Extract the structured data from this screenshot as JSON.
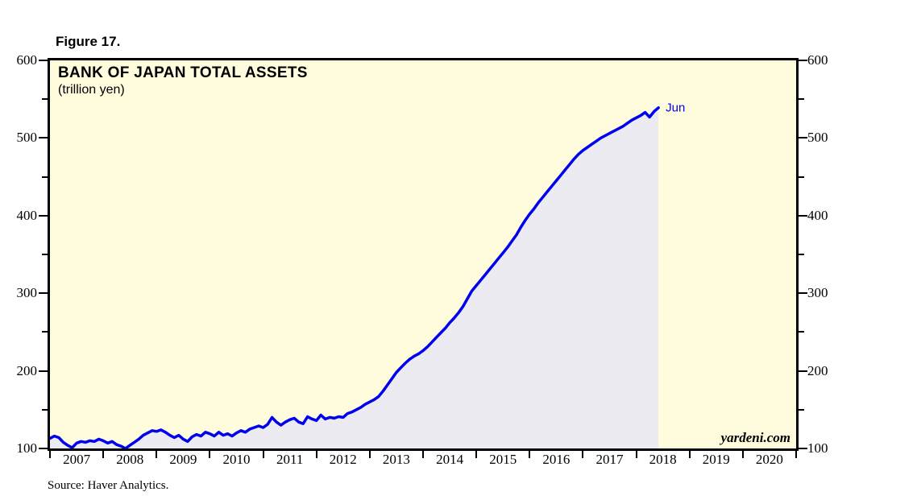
{
  "figure": {
    "label": "Figure 17."
  },
  "chart": {
    "title": "BANK OF JAPAN TOTAL ASSETS",
    "subtitle": "(trillion yen)",
    "branding": "yardeni.com",
    "last_point_label": "Jun"
  },
  "footer": {
    "source": "Source: Haver Analytics."
  },
  "colors": {
    "plot_background": "#FFFCDE",
    "area_fill": "#EBEBF1",
    "line": "#0000EE",
    "axis": "#000000",
    "page_background": "#FFFFFF"
  },
  "chart_data": {
    "type": "area",
    "title": "BANK OF JAPAN TOTAL ASSETS",
    "unit": "trillion yen",
    "start": {
      "year": 2007,
      "month": "Jan"
    },
    "end": {
      "year": 2018,
      "month": "Jun"
    },
    "x_axis_years": [
      2007,
      2008,
      2009,
      2010,
      2011,
      2012,
      2013,
      2014,
      2015,
      2016,
      2017,
      2018,
      2019,
      2020
    ],
    "ylim": [
      100,
      600
    ],
    "y_major_ticks": [
      100,
      200,
      300,
      400,
      500,
      600
    ],
    "y_minor_ticks": [
      150,
      250,
      350,
      450,
      550
    ],
    "grid": false,
    "legend": "none",
    "series": [
      {
        "name": "Bank of Japan total assets (trillion yen, monthly)",
        "monthly_values": [
          113,
          116,
          114,
          108,
          104,
          101,
          107,
          109,
          108,
          110,
          109,
          112,
          110,
          107,
          109,
          105,
          103,
          100,
          104,
          108,
          112,
          117,
          120,
          123,
          122,
          124,
          121,
          117,
          114,
          117,
          112,
          109,
          115,
          118,
          116,
          121,
          119,
          116,
          121,
          117,
          119,
          116,
          120,
          123,
          121,
          125,
          127,
          129,
          127,
          131,
          140,
          134,
          130,
          134,
          137,
          139,
          134,
          132,
          141,
          138,
          136,
          143,
          138,
          140,
          139,
          141,
          140,
          145,
          147,
          150,
          153,
          157,
          160,
          163,
          167,
          174,
          182,
          190,
          198,
          204,
          210,
          215,
          219,
          222,
          226,
          231,
          237,
          243,
          249,
          255,
          262,
          268,
          275,
          283,
          293,
          303,
          310,
          317,
          324,
          331,
          338,
          345,
          352,
          359,
          367,
          375,
          385,
          394,
          402,
          409,
          417,
          424,
          431,
          438,
          445,
          452,
          459,
          466,
          473,
          479,
          484,
          488,
          492,
          496,
          500,
          503,
          506,
          509,
          512,
          515,
          519,
          523,
          526,
          529,
          533,
          527,
          534,
          539
        ]
      }
    ]
  }
}
